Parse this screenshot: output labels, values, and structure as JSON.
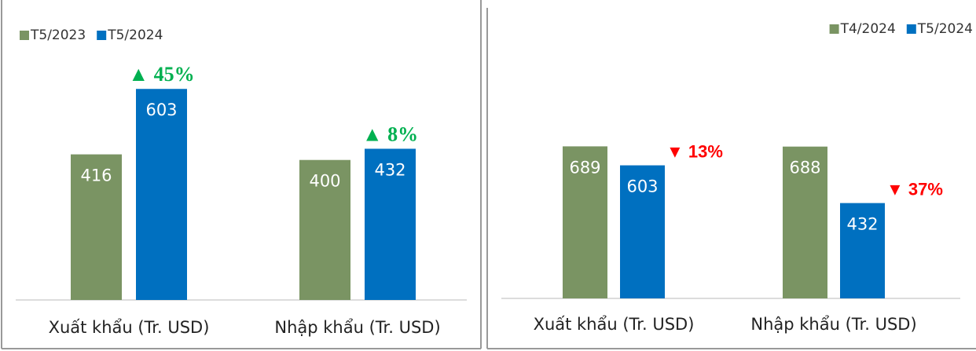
{
  "chart_data": [
    {
      "type": "bar",
      "categories": [
        "Xuất khẩu (Tr. USD)",
        "Nhập khẩu (Tr. USD)"
      ],
      "series": [
        {
          "name": "T5/2023",
          "color": "#7a9463",
          "values": [
            416,
            400
          ]
        },
        {
          "name": "T5/2024",
          "color": "#0070c0",
          "values": [
            603,
            432
          ]
        }
      ],
      "annotations": [
        "▲ 45%",
        "▲ 8%"
      ],
      "annotation_color": "#00b050",
      "ylim": [
        0,
        700
      ],
      "legend": "top-left"
    },
    {
      "type": "bar",
      "categories": [
        "Xuất khẩu (Tr. USD)",
        "Nhập khẩu (Tr. USD)"
      ],
      "series": [
        {
          "name": "T4/2024",
          "color": "#7a9463",
          "values": [
            689,
            688
          ]
        },
        {
          "name": "T5/2024",
          "color": "#0070c0",
          "values": [
            603,
            432
          ]
        }
      ],
      "annotations": [
        "▼ 13%",
        "▼ 37%"
      ],
      "annotation_color": "#ff0000",
      "ylim": [
        0,
        1000
      ],
      "legend": "top-right"
    }
  ]
}
